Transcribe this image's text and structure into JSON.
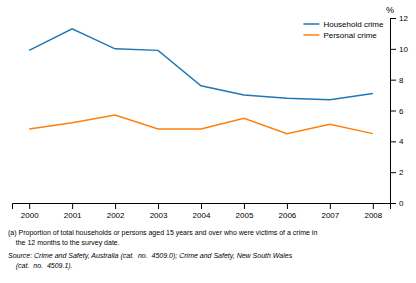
{
  "chart_data": {
    "type": "line",
    "x": [
      2000,
      2001,
      2002,
      2003,
      2004,
      2005,
      2006,
      2007,
      2008
    ],
    "series": [
      {
        "name": "Household crime",
        "values": [
          9.9,
          11.3,
          10.0,
          9.9,
          7.6,
          7.0,
          6.8,
          6.7,
          7.1
        ]
      },
      {
        "name": "Personal crime",
        "values": [
          4.8,
          5.2,
          5.7,
          4.8,
          4.8,
          5.5,
          4.5,
          5.1,
          4.5
        ]
      }
    ],
    "xlim": [
      1999.6,
      2008.4
    ],
    "xticks": [
      2000,
      2001,
      2002,
      2003,
      2004,
      2005,
      2006,
      2007,
      2008
    ],
    "ylim": [
      0,
      12
    ],
    "yticks": [
      0,
      2,
      4,
      6,
      8,
      10,
      12
    ],
    "y_label": "%",
    "legend": "upper right",
    "grid": false,
    "annotations": [
      "(a) Proportion of total households or persons aged 15 years and over who were victims of a crime in",
      "    the 12 months to the survey date.",
      "Source: Crime and Safety, Australia (cat.  no.  4509.0); Crime and Safety, New South Wales",
      "    (cat.  no.  4509.1)."
    ]
  }
}
